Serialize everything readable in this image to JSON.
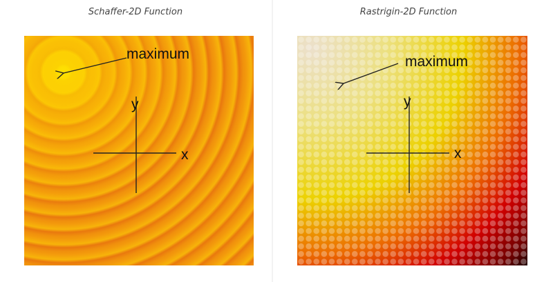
{
  "panels": [
    {
      "title": "Schaffer-2D Function",
      "annotation": "maximum",
      "x_label": "x",
      "y_label": "y"
    },
    {
      "title": "Rastrigin-2D Function",
      "annotation": "maximum",
      "x_label": "x",
      "y_label": "y"
    }
  ]
}
